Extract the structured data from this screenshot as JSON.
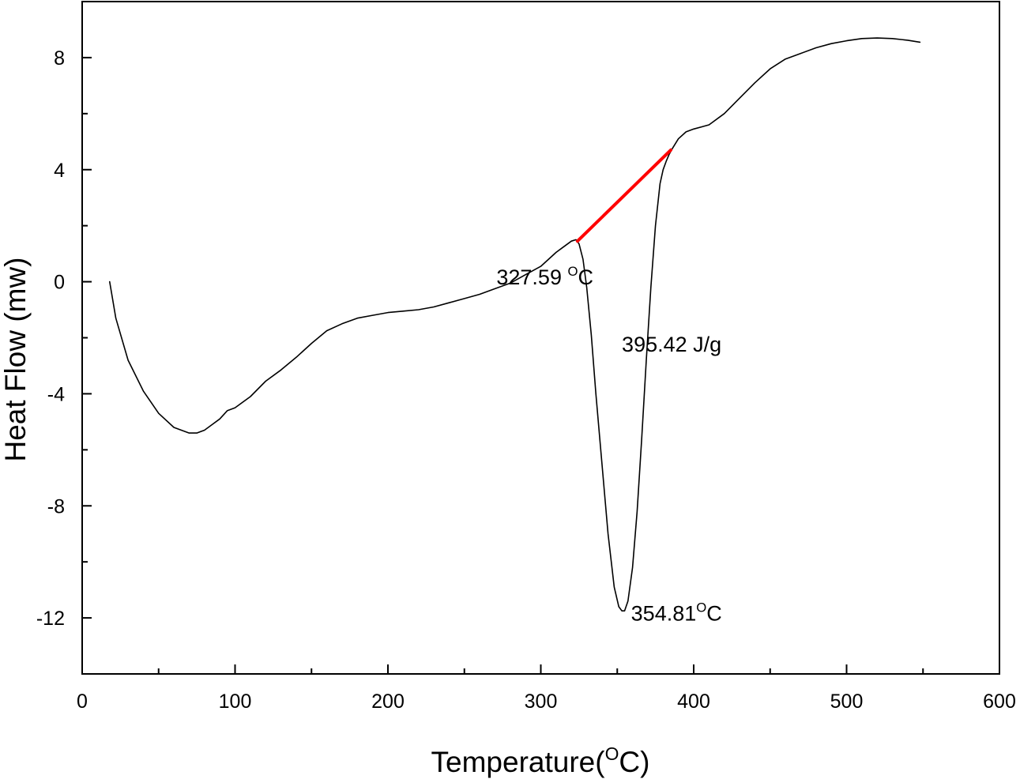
{
  "chart_data": {
    "type": "line",
    "title": "",
    "xlabel_main": "Temperature(",
    "xlabel_sup": "O",
    "xlabel_tail": "C)",
    "ylabel": "Heat Flow (mw)",
    "xlim": [
      0,
      600
    ],
    "ylim": [
      -14,
      10
    ],
    "x_ticks": [
      0,
      100,
      200,
      300,
      400,
      500,
      600
    ],
    "x_tick_labels": [
      "0",
      "100",
      "200",
      "300",
      "400",
      "500",
      "600"
    ],
    "x_minor_ticks": [
      50,
      150,
      250,
      350,
      450,
      550
    ],
    "y_ticks": [
      8,
      4,
      0,
      -4,
      -8,
      -12
    ],
    "y_tick_labels": [
      "8",
      "4",
      "0",
      "-4",
      "-8",
      "-12"
    ],
    "y_minor_ticks": [
      10,
      6,
      2,
      -2,
      -6,
      -10,
      -14
    ],
    "grid": false,
    "series": [
      {
        "color": "#000000",
        "x": [
          18,
          22,
          30,
          40,
          50,
          60,
          70,
          75,
          80,
          85,
          90,
          95,
          100,
          110,
          120,
          130,
          140,
          150,
          160,
          170,
          180,
          190,
          200,
          210,
          220,
          230,
          240,
          250,
          260,
          270,
          280,
          290,
          300,
          310,
          315,
          320,
          323,
          325,
          327.6,
          330,
          333,
          336,
          340,
          344,
          348,
          351,
          353,
          354.8,
          357,
          360,
          363,
          366,
          369,
          372,
          375,
          378,
          380,
          382,
          384,
          386,
          390,
          395,
          400,
          410,
          420,
          430,
          440,
          450,
          460,
          470,
          480,
          490,
          500,
          510,
          520,
          530,
          540,
          548
        ],
        "y": [
          0,
          -1.3,
          -2.8,
          -3.9,
          -4.7,
          -5.2,
          -5.4,
          -5.4,
          -5.3,
          -5.1,
          -4.9,
          -4.6,
          -4.5,
          -4.1,
          -3.55,
          -3.15,
          -2.7,
          -2.2,
          -1.75,
          -1.5,
          -1.3,
          -1.2,
          -1.1,
          -1.05,
          -1.0,
          -0.9,
          -0.75,
          -0.6,
          -0.45,
          -0.25,
          -0.05,
          0.25,
          0.55,
          1.05,
          1.25,
          1.45,
          1.5,
          1.35,
          0.8,
          -0.2,
          -1.9,
          -4.0,
          -6.5,
          -9.0,
          -10.9,
          -11.6,
          -11.75,
          -11.75,
          -11.4,
          -10.2,
          -8.2,
          -5.6,
          -2.8,
          -0.2,
          2.0,
          3.5,
          4.0,
          4.3,
          4.55,
          4.75,
          5.1,
          5.35,
          5.45,
          5.6,
          6.0,
          6.55,
          7.1,
          7.6,
          7.95,
          8.15,
          8.35,
          8.5,
          8.6,
          8.68,
          8.7,
          8.68,
          8.62,
          8.55
        ]
      },
      {
        "color": "#ff0000",
        "x": [
          324,
          385
        ],
        "y": [
          1.45,
          4.7
        ]
      }
    ],
    "annotations": [
      {
        "main": "327.59 ",
        "sup": "O",
        "tail": "C",
        "x": 271,
        "y": -0.1
      },
      {
        "main": "395.42 J/g",
        "sup": "",
        "tail": "",
        "x": 353,
        "y": -2.5
      },
      {
        "main": "354.81",
        "sup": "O",
        "tail": "C",
        "x": 359,
        "y": -12.1
      }
    ]
  }
}
